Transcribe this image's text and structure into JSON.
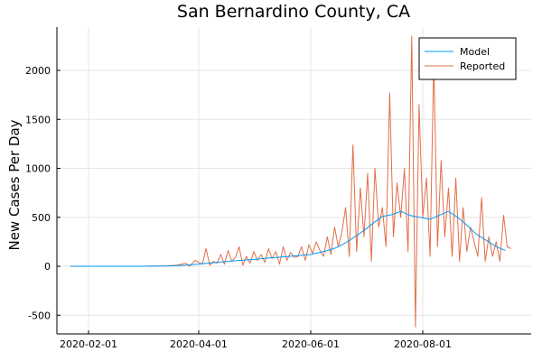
{
  "chart_data": {
    "type": "line",
    "title": "San Bernardino County, CA",
    "xlabel": "",
    "ylabel": "New Cases Per Day",
    "x_start": "2020-01-22",
    "x_ticks": [
      "2020-02-01",
      "2020-04-01",
      "2020-06-01",
      "2020-08-01"
    ],
    "y_ticks": [
      -500,
      0,
      500,
      1000,
      1500,
      2000
    ],
    "ylim": [
      -700,
      2400
    ],
    "grid": true,
    "legend_position": "top-right",
    "colors": {
      "Model": "#009AFA",
      "Reported": "#E26F46"
    },
    "series": [
      {
        "name": "Model",
        "x": [
          "2020-01-22",
          "2020-02-15",
          "2020-03-01",
          "2020-03-15",
          "2020-03-25",
          "2020-04-01",
          "2020-04-10",
          "2020-04-20",
          "2020-05-01",
          "2020-05-10",
          "2020-05-20",
          "2020-06-01",
          "2020-06-10",
          "2020-06-15",
          "2020-06-20",
          "2020-06-25",
          "2020-07-01",
          "2020-07-05",
          "2020-07-10",
          "2020-07-15",
          "2020-07-20",
          "2020-07-25",
          "2020-07-30",
          "2020-08-05",
          "2020-08-10",
          "2020-08-15",
          "2020-08-20",
          "2020-08-25",
          "2020-08-30",
          "2020-09-05",
          "2020-09-10",
          "2020-09-15"
        ],
        "values": [
          0,
          0,
          0,
          2,
          10,
          22,
          38,
          55,
          70,
          85,
          100,
          120,
          160,
          190,
          240,
          300,
          380,
          440,
          510,
          525,
          560,
          520,
          500,
          480,
          520,
          560,
          500,
          420,
          330,
          260,
          200,
          160
        ]
      },
      {
        "name": "Reported",
        "x": [
          "2020-01-22",
          "2020-02-15",
          "2020-03-01",
          "2020-03-15",
          "2020-03-20",
          "2020-03-25",
          "2020-03-27",
          "2020-03-30",
          "2020-04-01",
          "2020-04-03",
          "2020-04-05",
          "2020-04-07",
          "2020-04-09",
          "2020-04-11",
          "2020-04-13",
          "2020-04-15",
          "2020-04-17",
          "2020-04-19",
          "2020-04-21",
          "2020-04-23",
          "2020-04-25",
          "2020-04-27",
          "2020-04-29",
          "2020-05-01",
          "2020-05-03",
          "2020-05-05",
          "2020-05-07",
          "2020-05-09",
          "2020-05-11",
          "2020-05-13",
          "2020-05-15",
          "2020-05-17",
          "2020-05-19",
          "2020-05-21",
          "2020-05-23",
          "2020-05-25",
          "2020-05-27",
          "2020-05-29",
          "2020-05-31",
          "2020-06-02",
          "2020-06-04",
          "2020-06-06",
          "2020-06-08",
          "2020-06-10",
          "2020-06-12",
          "2020-06-14",
          "2020-06-16",
          "2020-06-18",
          "2020-06-20",
          "2020-06-22",
          "2020-06-24",
          "2020-06-26",
          "2020-06-28",
          "2020-06-30",
          "2020-07-02",
          "2020-07-04",
          "2020-07-06",
          "2020-07-08",
          "2020-07-10",
          "2020-07-12",
          "2020-07-14",
          "2020-07-16",
          "2020-07-18",
          "2020-07-20",
          "2020-07-22",
          "2020-07-24",
          "2020-07-26",
          "2020-07-28",
          "2020-07-30",
          "2020-08-01",
          "2020-08-03",
          "2020-08-05",
          "2020-08-07",
          "2020-08-09",
          "2020-08-11",
          "2020-08-13",
          "2020-08-15",
          "2020-08-17",
          "2020-08-19",
          "2020-08-21",
          "2020-08-23",
          "2020-08-25",
          "2020-08-27",
          "2020-08-29",
          "2020-08-31",
          "2020-09-02",
          "2020-09-04",
          "2020-09-06",
          "2020-09-08",
          "2020-09-10",
          "2020-09-12",
          "2020-09-14",
          "2020-09-16",
          "2020-09-18"
        ],
        "values": [
          0,
          0,
          0,
          5,
          10,
          30,
          0,
          60,
          40,
          20,
          180,
          10,
          50,
          30,
          120,
          20,
          160,
          50,
          90,
          200,
          10,
          100,
          30,
          150,
          60,
          120,
          40,
          180,
          80,
          150,
          20,
          200,
          60,
          140,
          90,
          100,
          200,
          60,
          220,
          130,
          250,
          160,
          100,
          300,
          120,
          400,
          200,
          350,
          600,
          100,
          1240,
          150,
          800,
          300,
          950,
          50,
          1000,
          400,
          600,
          200,
          1770,
          300,
          850,
          500,
          1000,
          150,
          2350,
          -620,
          1650,
          500,
          900,
          100,
          2100,
          200,
          1080,
          300,
          800,
          100,
          900,
          50,
          600,
          150,
          400,
          250,
          100,
          700,
          50,
          300,
          100,
          250,
          50,
          520,
          200,
          180
        ]
      }
    ]
  }
}
